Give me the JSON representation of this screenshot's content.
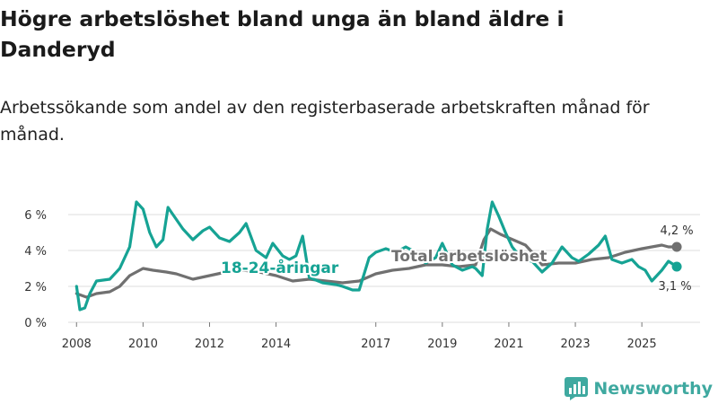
{
  "header": {
    "title": "Högre arbetslöshet bland unga än bland äldre i Danderyd",
    "subtitle": "Arbetssökande som andel av den registerbaserade arbetskraften månad för månad."
  },
  "brand": {
    "name": "Newsworthy",
    "color": "#3fa9a0"
  },
  "chart_data": {
    "type": "line",
    "title": "Högre arbetslöshet bland unga än bland äldre i Danderyd",
    "xlabel": "",
    "ylabel": "",
    "xlim": [
      2007.75,
      2026.75
    ],
    "ylim": [
      0,
      6.8
    ],
    "yticks": [
      0,
      2,
      4,
      6
    ],
    "ytick_labels": [
      "0 %",
      "2 %",
      "4 %",
      "6 %"
    ],
    "xticks": [
      2008,
      2010,
      2012,
      2014,
      2017,
      2019,
      2021,
      2023,
      2025
    ],
    "xtick_labels": [
      "2008",
      "2010",
      "2012",
      "2014",
      "2017",
      "2019",
      "2021",
      "2023",
      "2025"
    ],
    "grid": true,
    "series": [
      {
        "name": "Total arbetslöshet",
        "color": "#707070",
        "end_label": "4,2 %",
        "x": [
          2008.0,
          2008.3,
          2008.6,
          2009.0,
          2009.3,
          2009.6,
          2010.0,
          2010.3,
          2010.7,
          2011.0,
          2011.5,
          2012.0,
          2012.5,
          2013.0,
          2013.5,
          2014.0,
          2014.5,
          2015.0,
          2015.5,
          2016.0,
          2016.5,
          2017.0,
          2017.5,
          2018.0,
          2018.5,
          2019.0,
          2019.5,
          2020.0,
          2020.25,
          2020.45,
          2020.75,
          2021.0,
          2021.25,
          2021.5,
          2021.75,
          2022.0,
          2022.5,
          2023.0,
          2023.5,
          2024.0,
          2024.5,
          2025.0,
          2025.3,
          2025.6,
          2025.8,
          2026.05
        ],
        "values": [
          1.6,
          1.4,
          1.6,
          1.7,
          2.0,
          2.6,
          3.0,
          2.9,
          2.8,
          2.7,
          2.4,
          2.6,
          2.8,
          2.9,
          2.8,
          2.6,
          2.3,
          2.4,
          2.3,
          2.2,
          2.3,
          2.7,
          2.9,
          3.0,
          3.2,
          3.2,
          3.1,
          3.2,
          4.6,
          5.2,
          4.9,
          4.7,
          4.5,
          4.3,
          3.8,
          3.2,
          3.3,
          3.3,
          3.5,
          3.6,
          3.9,
          4.1,
          4.2,
          4.3,
          4.2,
          4.2
        ]
      },
      {
        "name": "18-24-åringar",
        "color": "#16a394",
        "end_label": "3,1 %",
        "x": [
          2008.0,
          2008.1,
          2008.25,
          2008.4,
          2008.6,
          2009.0,
          2009.3,
          2009.6,
          2009.8,
          2010.0,
          2010.2,
          2010.4,
          2010.6,
          2010.75,
          2010.9,
          2011.2,
          2011.5,
          2011.8,
          2012.0,
          2012.3,
          2012.6,
          2012.9,
          2013.1,
          2013.4,
          2013.7,
          2013.9,
          2014.2,
          2014.4,
          2014.6,
          2014.8,
          2015.0,
          2015.4,
          2015.8,
          2016.0,
          2016.3,
          2016.5,
          2016.8,
          2017.0,
          2017.3,
          2017.6,
          2017.9,
          2018.2,
          2018.5,
          2018.8,
          2019.0,
          2019.3,
          2019.6,
          2019.9,
          2020.0,
          2020.2,
          2020.35,
          2020.5,
          2020.7,
          2020.9,
          2021.1,
          2021.4,
          2021.7,
          2022.0,
          2022.3,
          2022.6,
          2022.9,
          2023.1,
          2023.4,
          2023.7,
          2023.9,
          2024.1,
          2024.4,
          2024.7,
          2024.9,
          2025.1,
          2025.3,
          2025.6,
          2025.8,
          2026.05
        ],
        "values": [
          2.0,
          0.7,
          0.8,
          1.6,
          2.3,
          2.4,
          3.0,
          4.2,
          6.7,
          6.3,
          5.0,
          4.2,
          4.6,
          6.4,
          6.0,
          5.2,
          4.6,
          5.1,
          5.3,
          4.7,
          4.5,
          5.0,
          5.5,
          4.0,
          3.6,
          4.4,
          3.7,
          3.5,
          3.7,
          4.8,
          2.5,
          2.2,
          2.1,
          2.0,
          1.8,
          1.8,
          3.6,
          3.9,
          4.1,
          3.9,
          4.2,
          3.9,
          3.3,
          3.6,
          4.4,
          3.2,
          2.9,
          3.1,
          3.0,
          2.6,
          5.2,
          6.7,
          5.9,
          5.0,
          4.2,
          3.5,
          3.4,
          2.8,
          3.3,
          4.2,
          3.6,
          3.4,
          3.8,
          4.3,
          4.8,
          3.5,
          3.3,
          3.5,
          3.1,
          2.9,
          2.3,
          2.9,
          3.4,
          3.1
        ]
      }
    ],
    "series_labels": [
      {
        "series": "18-24-åringar",
        "text": "18-24-åringar"
      },
      {
        "series": "Total arbetslöshet",
        "text": "Total arbetslöshet"
      }
    ]
  }
}
